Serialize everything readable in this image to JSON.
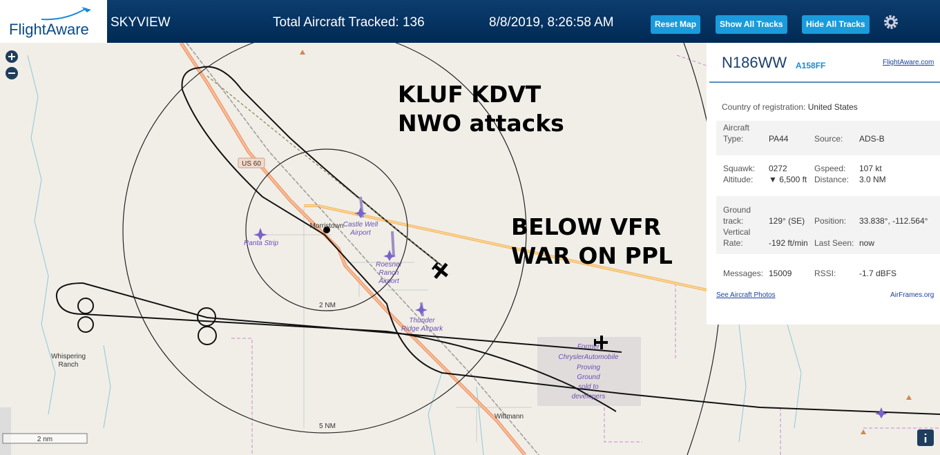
{
  "header": {
    "logo": "FlightAware",
    "title": "SKYVIEW",
    "aircraft_tracked": "Total Aircraft Tracked: 136",
    "datetime": "8/8/2019, 8:26:58 AM",
    "buttons": [
      "Reset Map",
      "Show All Tracks",
      "Hide All Tracks"
    ]
  },
  "map": {
    "overlay_text": [
      "KLUF KDVT",
      "NWO attacks",
      "BELOW VFR",
      "WAR ON PPL"
    ],
    "places": {
      "morristown": "Morristown",
      "castle_well": [
        "Castle Well",
        "Airport"
      ],
      "ranta": "Ranta Strip",
      "roesner": [
        "Roesner",
        "Ranch",
        "Airport"
      ],
      "thunder": [
        "Thunder",
        "Ridge Airpark"
      ],
      "whispering": [
        "Whispering",
        "Ranch"
      ],
      "wittmann": "Wittmann",
      "proving": [
        "Former",
        "ChryslerAutomobile",
        "Proving",
        "Ground",
        "sold to",
        "developers"
      ]
    },
    "road": "US 60",
    "rings": [
      "2 NM",
      "5 NM"
    ],
    "scale": "2 nm"
  },
  "panel": {
    "tail": "N186WW",
    "hex": "A158FF",
    "link": "FlightAware.com",
    "country_label": "Country of registration:",
    "country": "United States",
    "fields": {
      "type_label": "Aircraft Type:",
      "type": "PA44",
      "source_label": "Source:",
      "source": "ADS-B",
      "squawk_label": "Squawk:",
      "squawk": "0272",
      "gspeed_label": "Gspeed:",
      "gspeed": "107 kt",
      "altitude_label": "Altitude:",
      "altitude": "▼ 6,500 ft",
      "distance_label": "Distance:",
      "distance": "3.0 NM",
      "track_label": "Ground track:",
      "track": "129° (SE)",
      "position_label": "Position:",
      "position": "33.838°, -112.564°",
      "vrate_label": "Vertical Rate:",
      "vrate": "-192 ft/min",
      "seen_label": "Last Seen:",
      "seen": "now",
      "messages_label": "Messages:",
      "messages": "15009",
      "rssi_label": "RSSI:",
      "rssi": "-1.7 dBFS"
    },
    "photos": "See Aircraft Photos",
    "airframes": "AirFrames.org"
  }
}
